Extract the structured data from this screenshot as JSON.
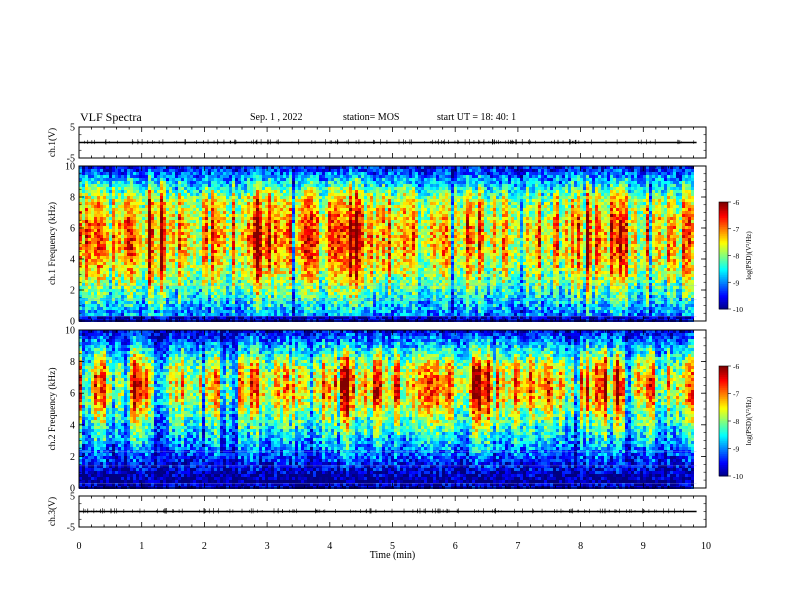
{
  "header": {
    "title": "VLF Spectra",
    "date": "Sep. 1 , 2022",
    "station": "station= MOS",
    "start": "start UT =  18: 40: 1"
  },
  "chart_data": [
    {
      "type": "line",
      "panel": "ch1-waveform",
      "ylabel": "ch.1(V)",
      "ylim": [
        -5,
        5
      ],
      "y_ticks": [
        "5",
        "-5"
      ],
      "xlim": [
        0,
        10
      ],
      "series": [
        {
          "x": [
            0,
            9.85
          ],
          "values": [
            0,
            0
          ]
        }
      ]
    },
    {
      "type": "heatmap",
      "panel": "ch1-spectrogram",
      "ylabel": "ch.1 Frequency (kHz)",
      "ylim": [
        0,
        10
      ],
      "y_ticks": [
        "0",
        "2",
        "4",
        "6",
        "8",
        "10"
      ],
      "xlim": [
        0,
        10
      ],
      "data_end_min": 9.85,
      "colorbar": {
        "label": "log(PSD)(V²/Hz)",
        "range": [
          -10,
          -6
        ],
        "ticks": [
          "-6",
          "-7",
          "-8",
          "-9",
          "-10"
        ]
      },
      "band_peak_khz": [
        3,
        8
      ]
    },
    {
      "type": "heatmap",
      "panel": "ch2-spectrogram",
      "ylabel": "ch.2 Frequency (kHz)",
      "ylim": [
        0,
        10
      ],
      "y_ticks": [
        "0",
        "2",
        "4",
        "6",
        "8",
        "10"
      ],
      "xlim": [
        0,
        10
      ],
      "data_end_min": 9.85,
      "colorbar": {
        "label": "log(PSD)(V²/Hz)",
        "range": [
          -10,
          -6
        ],
        "ticks": [
          "-6",
          "-7",
          "-8",
          "-9",
          "-10"
        ]
      },
      "band_peak_khz": [
        5,
        8
      ]
    },
    {
      "type": "line",
      "panel": "ch3-waveform",
      "ylabel": "ch.3(V)",
      "ylim": [
        -5,
        5
      ],
      "y_ticks": [
        "5",
        "-5"
      ],
      "xlim": [
        0,
        10
      ],
      "series": [
        {
          "x": [
            0,
            9.85
          ],
          "values": [
            0,
            0
          ]
        }
      ]
    }
  ],
  "x_axis": {
    "label": "Time (min)",
    "ticks": [
      "0",
      "1",
      "2",
      "3",
      "4",
      "5",
      "6",
      "7",
      "8",
      "9",
      "10"
    ]
  }
}
